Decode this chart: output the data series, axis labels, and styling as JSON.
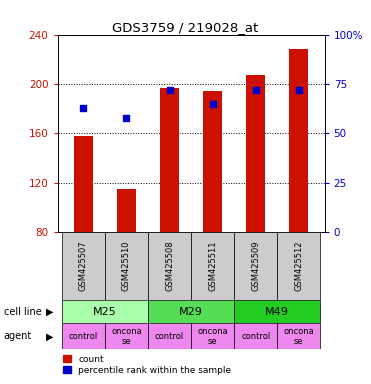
{
  "title": "GDS3759 / 219028_at",
  "samples": [
    "GSM425507",
    "GSM425510",
    "GSM425508",
    "GSM425511",
    "GSM425509",
    "GSM425512"
  ],
  "counts": [
    158,
    115,
    197,
    194,
    207,
    228
  ],
  "percentiles": [
    63,
    58,
    72,
    65,
    72,
    72
  ],
  "ylim_left": [
    80,
    240
  ],
  "ylim_right": [
    0,
    100
  ],
  "yticks_left": [
    80,
    120,
    160,
    200,
    240
  ],
  "yticks_right": [
    0,
    25,
    50,
    75,
    100
  ],
  "ytick_labels_right": [
    "0",
    "25",
    "50",
    "75",
    "100%"
  ],
  "bar_color": "#cc1100",
  "dot_color": "#0000cc",
  "bar_width": 0.45,
  "cell_line_colors": [
    "#aaffaa",
    "#55dd55",
    "#22cc22"
  ],
  "cell_line_labels": [
    "M25",
    "M29",
    "M49"
  ],
  "cell_line_spans": [
    [
      0,
      2
    ],
    [
      2,
      4
    ],
    [
      4,
      6
    ]
  ],
  "agent_color": "#ee88ee",
  "agent_labels": [
    "control",
    "oncona\nse",
    "control",
    "oncona\nse",
    "control",
    "oncona\nse"
  ],
  "legend_count_color": "#cc1100",
  "legend_pct_color": "#0000cc",
  "cell_line_label": "cell line",
  "agent_label": "agent",
  "background_color": "#ffffff",
  "sample_box_color": "#cccccc"
}
